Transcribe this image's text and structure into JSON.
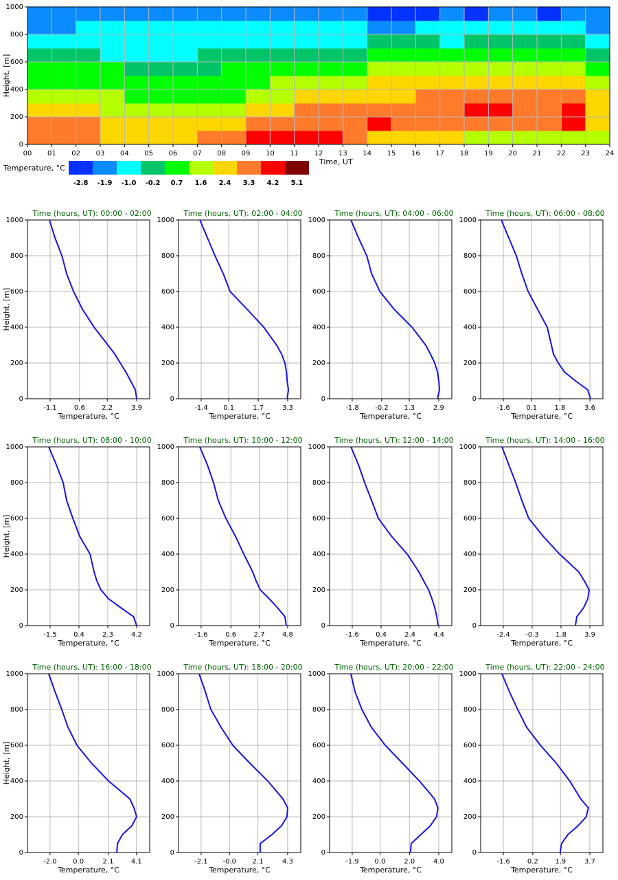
{
  "chart_data": [
    {
      "type": "heatmap",
      "xlabel": "Time, UT",
      "ylabel": "Height, [m]",
      "xlim": [
        0,
        24
      ],
      "ylim": [
        0,
        1000
      ],
      "xticks": [
        {
          "value": 0,
          "label": "00"
        },
        {
          "value": 1,
          "label": "01"
        },
        {
          "value": 2,
          "label": "02"
        },
        {
          "value": 3,
          "label": "03"
        },
        {
          "value": 4,
          "label": "04"
        },
        {
          "value": 5,
          "label": "05"
        },
        {
          "value": 6,
          "label": "06"
        },
        {
          "value": 7,
          "label": "07"
        },
        {
          "value": 8,
          "label": "08"
        },
        {
          "value": 9,
          "label": "09"
        },
        10,
        11,
        12,
        13,
        14,
        15,
        16,
        17,
        18,
        19,
        20,
        21,
        22,
        23,
        24
      ],
      "yticks": [
        0,
        200,
        400,
        600,
        800,
        1000
      ],
      "grid": true,
      "colorbar_title": "Temperature, °C",
      "levels": [
        -2.8,
        -1.9,
        {
          "value": -1,
          "label": "-1.0"
        },
        -0.2,
        0.7,
        1.6,
        2.4,
        3.3,
        4.2,
        5.1
      ],
      "colors": [
        "#0433ff",
        "#0a8cff",
        "#00ffff",
        "#00c468",
        "#00ff00",
        "#b4ff00",
        "#ffd700",
        "#ff7a2a",
        "#ff0000",
        "#800000"
      ],
      "values": [
        [
          3.3,
          3.3,
          3.3,
          2.4,
          2.4,
          2.4,
          2.4,
          3.3,
          3.3,
          4.2,
          4.2,
          4.2,
          4.2,
          3.3,
          2.4,
          2.4,
          2.4,
          2.4,
          1.6,
          1.6,
          1.6,
          1.6,
          1.6,
          1.6
        ],
        [
          3.3,
          3.3,
          3.3,
          2.4,
          2.4,
          2.4,
          2.4,
          2.4,
          2.4,
          3.3,
          3.3,
          3.3,
          3.3,
          3.3,
          4.2,
          3.3,
          3.3,
          3.3,
          3.3,
          3.3,
          3.3,
          3.3,
          4.2,
          2.4
        ],
        [
          2.4,
          2.4,
          2.4,
          1.6,
          1.6,
          1.6,
          1.6,
          1.6,
          1.6,
          2.4,
          2.4,
          3.3,
          3.3,
          3.3,
          3.3,
          3.3,
          3.3,
          3.3,
          4.2,
          4.2,
          3.3,
          3.3,
          4.2,
          2.4
        ],
        [
          1.6,
          1.6,
          1.6,
          1.6,
          0.7,
          0.7,
          0.7,
          0.7,
          0.7,
          1.6,
          1.6,
          2.4,
          2.4,
          2.4,
          2.4,
          2.4,
          3.3,
          3.3,
          3.3,
          3.3,
          3.3,
          3.3,
          3.3,
          2.4
        ],
        [
          0.7,
          0.7,
          0.7,
          0.7,
          0.7,
          0.7,
          0.7,
          0.7,
          0.7,
          0.7,
          1.6,
          1.6,
          1.6,
          1.6,
          2.4,
          2.4,
          2.4,
          2.4,
          2.4,
          2.4,
          2.4,
          2.4,
          2.4,
          1.6
        ],
        [
          0.7,
          0.7,
          0.7,
          0.7,
          -0.2,
          -0.2,
          -0.2,
          -0.2,
          0.7,
          0.7,
          0.7,
          0.7,
          0.7,
          0.7,
          1.6,
          1.6,
          1.6,
          1.6,
          1.6,
          1.6,
          1.6,
          1.6,
          1.6,
          0.7
        ],
        [
          -0.2,
          -0.2,
          -0.2,
          -1.0,
          -1.0,
          -1.0,
          -1.0,
          -0.2,
          -0.2,
          -0.2,
          -0.2,
          -0.2,
          -0.2,
          -0.2,
          0.7,
          0.7,
          0.7,
          0.7,
          0.7,
          0.7,
          0.7,
          0.7,
          0.7,
          -0.2
        ],
        [
          -1.0,
          -1.0,
          -1.0,
          -1.0,
          -1.0,
          -1.0,
          -1.0,
          -1.0,
          -1.0,
          -1.0,
          -1.0,
          -1.0,
          -1.0,
          -1.0,
          -0.2,
          -0.2,
          -0.2,
          -1.0,
          -0.2,
          -0.2,
          -0.2,
          -0.2,
          -0.2,
          -1.0
        ],
        [
          -1.9,
          -1.9,
          -1.0,
          -1.0,
          -1.0,
          -1.0,
          -1.0,
          -1.0,
          -1.0,
          -1.0,
          -1.0,
          -1.0,
          -1.0,
          -1.0,
          -1.9,
          -1.9,
          -1.0,
          -1.0,
          -1.0,
          -1.0,
          -1.0,
          -1.0,
          -1.0,
          -1.9
        ],
        [
          -1.9,
          -1.9,
          -1.9,
          -1.9,
          -1.9,
          -1.9,
          -1.9,
          -1.9,
          -1.9,
          -1.9,
          -1.9,
          -1.9,
          -1.9,
          -1.9,
          -2.8,
          -2.8,
          -2.8,
          -1.9,
          -2.8,
          -1.9,
          -1.9,
          -2.8,
          -1.9,
          -1.9
        ]
      ]
    },
    {
      "type": "line",
      "title": "Time (hours, UT): 00:00 - 02:00",
      "xlabel": "Temperature, °C",
      "ylabel": "Height, [m]",
      "color": "#1414e6",
      "xlim": [
        -2.41,
        4.65
      ],
      "xticks": [
        -1.1,
        0.6,
        2.2,
        3.9
      ],
      "ylim": [
        0,
        1000
      ],
      "yticks": [
        0,
        200,
        400,
        600,
        800,
        1000
      ],
      "grid": true,
      "x": [
        3.9,
        3.82,
        3.55,
        3.27,
        2.95,
        2.63,
        2.24,
        1.44,
        0.77,
        0.25,
        -0.15,
        -0.42,
        -0.82,
        -1.14
      ],
      "values": [
        0,
        50,
        100,
        150,
        200,
        250,
        300,
        400,
        500,
        600,
        700,
        800,
        900,
        1000
      ]
    },
    {
      "type": "line",
      "title": "Time (hours, UT): 02:00 - 04:00",
      "xlabel": "Temperature, °C",
      "color": "#1414e6",
      "xlim": [
        -2.63,
        4.01
      ],
      "xticks": [
        -1.4,
        0.1,
        1.7,
        3.3
      ],
      "ylim": [
        0,
        1000
      ],
      "yticks": [
        0,
        200,
        400,
        600,
        800,
        1000
      ],
      "grid": true,
      "x": [
        3.27,
        3.34,
        3.27,
        3.23,
        3.15,
        2.97,
        2.7,
        2.0,
        1.1,
        0.17,
        -0.2,
        -0.65,
        -1.06,
        -1.47
      ],
      "values": [
        0,
        50,
        100,
        150,
        200,
        250,
        300,
        400,
        500,
        600,
        700,
        800,
        900,
        1000
      ]
    },
    {
      "type": "line",
      "title": "Time (hours, UT): 04:00 - 06:00",
      "xlabel": "Temperature, °C",
      "color": "#1414e6",
      "xlim": [
        -3.03,
        3.61
      ],
      "xticks": [
        -1.8,
        -0.2,
        1.3,
        2.9
      ],
      "ylim": [
        0,
        1000
      ],
      "yticks": [
        0,
        200,
        400,
        600,
        800,
        1000
      ],
      "grid": true,
      "x": [
        2.83,
        2.94,
        2.9,
        2.83,
        2.68,
        2.45,
        2.19,
        1.45,
        0.48,
        -0.3,
        -0.75,
        -1.01,
        -1.46,
        -1.87
      ],
      "values": [
        0,
        50,
        100,
        150,
        200,
        250,
        300,
        400,
        500,
        600,
        700,
        800,
        900,
        1000
      ]
    },
    {
      "type": "line",
      "title": "Time (hours, UT): 06:00 - 08:00",
      "xlabel": "Temperature, °C",
      "color": "#1414e6",
      "xlim": [
        -2.96,
        4.38
      ],
      "xticks": [
        -1.6,
        0.1,
        1.8,
        3.6
      ],
      "ylim": [
        0,
        1000
      ],
      "yticks": [
        0,
        200,
        400,
        600,
        800,
        1000
      ],
      "grid": true,
      "x": [
        3.64,
        3.47,
        2.73,
        2.07,
        1.7,
        1.41,
        1.29,
        1.04,
        0.46,
        -0.11,
        -0.49,
        -0.82,
        -1.27,
        -1.72
      ],
      "values": [
        0,
        50,
        100,
        150,
        200,
        250,
        300,
        400,
        500,
        600,
        700,
        800,
        900,
        1000
      ]
    },
    {
      "type": "line",
      "title": "Time (hours, UT): 08:00 - 10:00",
      "xlabel": "Temperature, °C",
      "ylabel": "Height, [m]",
      "color": "#1414e6",
      "xlim": [
        -2.99,
        5.06
      ],
      "xticks": [
        -1.5,
        0.4,
        2.3,
        4.2
      ],
      "ylim": [
        0,
        1000
      ],
      "yticks": [
        0,
        200,
        400,
        600,
        800,
        1000
      ],
      "grid": true,
      "x": [
        4.2,
        4.0,
        3.16,
        2.35,
        1.85,
        1.58,
        1.4,
        1.13,
        0.45,
        0,
        -0.41,
        -0.64,
        -1.09,
        -1.59
      ],
      "values": [
        0,
        50,
        100,
        150,
        200,
        250,
        300,
        400,
        500,
        600,
        700,
        800,
        900,
        1000
      ]
    },
    {
      "type": "line",
      "title": "Time (hours, UT): 10:00 - 12:00",
      "xlabel": "Temperature, °C",
      "color": "#1414e6",
      "xlim": [
        -3.27,
        5.77
      ],
      "xticks": [
        -1.6,
        0.6,
        2.7,
        4.8
      ],
      "ylim": [
        0,
        1000
      ],
      "yticks": [
        0,
        200,
        400,
        600,
        800,
        1000
      ],
      "grid": true,
      "x": [
        4.7,
        4.6,
        4.05,
        3.44,
        2.78,
        2.47,
        2.22,
        1.56,
        0.94,
        0.23,
        -0.33,
        -0.68,
        -1.14,
        -1.7
      ],
      "values": [
        0,
        50,
        100,
        150,
        200,
        250,
        300,
        400,
        500,
        600,
        700,
        800,
        900,
        1000
      ]
    },
    {
      "type": "line",
      "title": "Time (hours, UT): 12:00 - 14:00",
      "xlabel": "Temperature, °C",
      "color": "#1414e6",
      "xlim": [
        -3.17,
        5.3
      ],
      "xticks": [
        -1.6,
        0.4,
        2.4,
        4.4
      ],
      "ylim": [
        0,
        1000
      ],
      "yticks": [
        0,
        200,
        400,
        600,
        800,
        1000
      ],
      "grid": true,
      "x": [
        4.35,
        4.26,
        4.12,
        3.92,
        3.69,
        3.35,
        3.02,
        2.21,
        1.12,
        0.21,
        -0.26,
        -0.74,
        -1.17,
        -1.69
      ],
      "values": [
        0,
        50,
        100,
        150,
        200,
        250,
        300,
        400,
        500,
        600,
        700,
        800,
        900,
        1000
      ]
    },
    {
      "type": "line",
      "title": "Time (hours, UT): 14:00 - 16:00",
      "xlabel": "Temperature, °C",
      "color": "#1414e6",
      "xlim": [
        -4.05,
        4.85
      ],
      "xticks": [
        -2.4,
        -0.3,
        1.8,
        3.9
      ],
      "ylim": [
        0,
        1000
      ],
      "yticks": [
        0,
        200,
        400,
        600,
        800,
        1000
      ],
      "grid": true,
      "x": [
        2.85,
        2.95,
        3.45,
        3.75,
        3.85,
        3.5,
        3.1,
        1.7,
        0.5,
        -0.55,
        -1.05,
        -1.5,
        -2.0,
        -2.5
      ],
      "values": [
        0,
        50,
        100,
        150,
        200,
        250,
        300,
        400,
        500,
        600,
        700,
        800,
        900,
        1000
      ]
    },
    {
      "type": "line",
      "title": "Time (hours, UT): 16:00 - 18:00",
      "xlabel": "Temperature, °C",
      "ylabel": "Height, [m]",
      "color": "#1414e6",
      "xlim": [
        -3.59,
        5.03
      ],
      "xticks": [
        {
          "value": -2,
          "label": "-2.0"
        },
        {
          "value": 0,
          "label": "0.0"
        },
        2.1,
        4.1
      ],
      "ylim": [
        0,
        1000
      ],
      "yticks": [
        0,
        200,
        400,
        600,
        800,
        1000
      ],
      "grid": true,
      "x": [
        2.71,
        2.76,
        3.1,
        3.78,
        4.11,
        3.92,
        3.63,
        2.13,
        0.92,
        -0.1,
        -0.73,
        -1.17,
        -1.65,
        -2.09
      ],
      "values": [
        0,
        50,
        100,
        150,
        200,
        250,
        300,
        400,
        500,
        600,
        700,
        800,
        900,
        1000
      ]
    },
    {
      "type": "line",
      "title": "Time (hours, UT): 18:00 - 20:00",
      "xlabel": "Temperature, °C",
      "color": "#1414e6",
      "xlim": [
        -3.77,
        5.27
      ],
      "xticks": [
        -2.1,
        {
          "value": 0,
          "label": "-0.0"
        },
        2.1,
        4.3
      ],
      "ylim": [
        0,
        1000
      ],
      "yticks": [
        0,
        200,
        400,
        600,
        800,
        1000
      ],
      "grid": true,
      "x": [
        2.27,
        2.27,
        3.14,
        3.85,
        4.25,
        4.3,
        3.95,
        2.83,
        1.5,
        0.24,
        -0.62,
        -1.38,
        -1.79,
        -2.25
      ],
      "values": [
        0,
        50,
        100,
        150,
        200,
        250,
        300,
        400,
        500,
        600,
        700,
        800,
        900,
        1000
      ]
    },
    {
      "type": "line",
      "title": "Time (hours, UT): 20:00 - 22:00",
      "xlabel": "Temperature, °C",
      "color": "#1414e6",
      "xlim": [
        -3.44,
        4.89
      ],
      "xticks": [
        -1.9,
        {
          "value": 0,
          "label": "0.0"
        },
        {
          "value": 2,
          "label": "2.0"
        },
        {
          "value": 4,
          "label": "4.0"
        }
      ],
      "ylim": [
        0,
        1000
      ],
      "yticks": [
        0,
        200,
        400,
        600,
        800,
        1000
      ],
      "grid": true,
      "x": [
        2.07,
        2.12,
        2.78,
        3.43,
        3.85,
        3.94,
        3.71,
        2.68,
        1.52,
        0.35,
        -0.59,
        -1.24,
        -1.71,
        -1.99
      ],
      "values": [
        0,
        50,
        100,
        150,
        200,
        250,
        300,
        400,
        500,
        600,
        700,
        800,
        900,
        1000
      ]
    },
    {
      "type": "line",
      "title": "Time (hours, UT): 22:00 - 24:00",
      "xlabel": "Temperature, °C",
      "color": "#1414e6",
      "xlim": [
        -2.99,
        4.5
      ],
      "xticks": [
        -1.6,
        0.2,
        1.9,
        3.7
      ],
      "ylim": [
        0,
        1000
      ],
      "yticks": [
        0,
        200,
        400,
        600,
        800,
        1000
      ],
      "grid": true,
      "x": [
        1.88,
        1.97,
        2.35,
        2.98,
        3.48,
        3.61,
        3.14,
        2.47,
        1.64,
        0.67,
        -0.17,
        -0.72,
        -1.23,
        -1.69
      ],
      "values": [
        0,
        50,
        100,
        150,
        200,
        250,
        300,
        400,
        500,
        600,
        700,
        800,
        900,
        1000
      ]
    }
  ]
}
